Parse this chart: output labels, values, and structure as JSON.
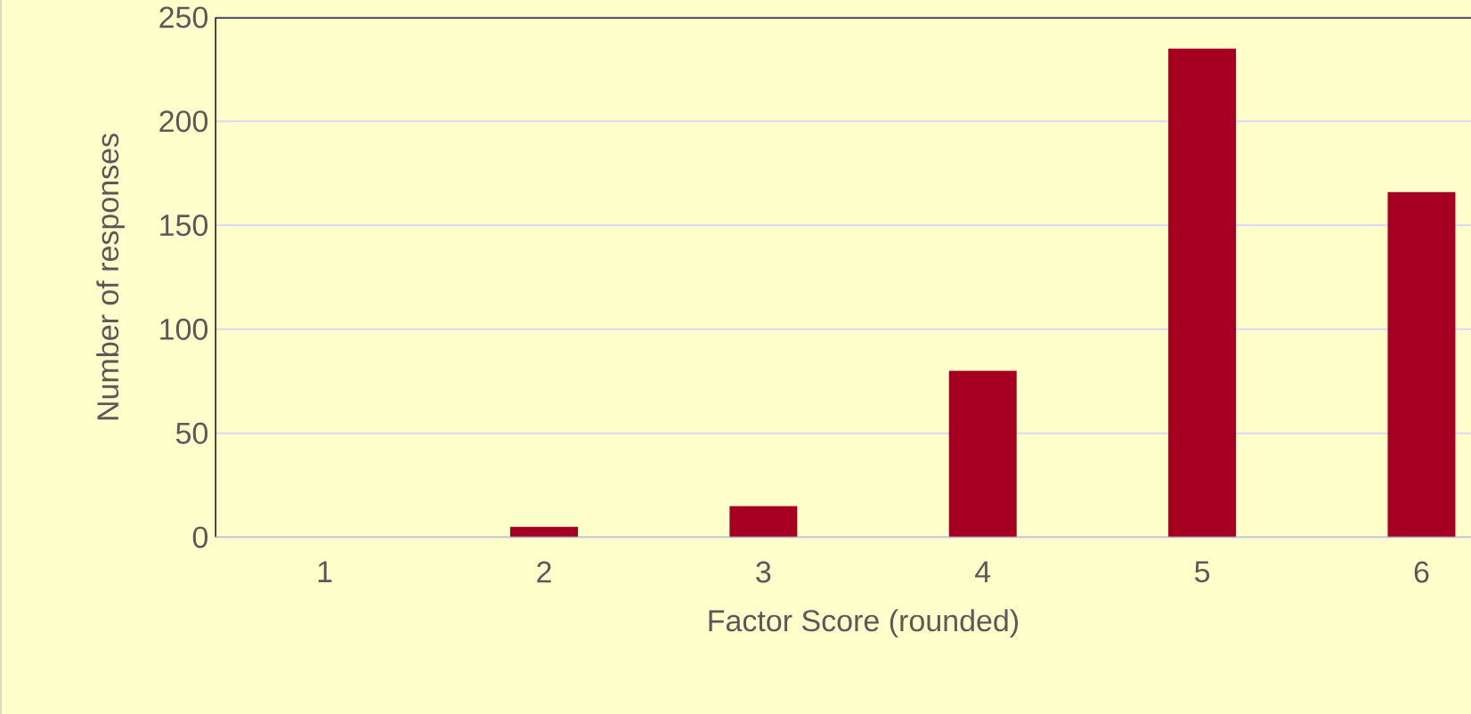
{
  "chart_data": {
    "type": "bar",
    "xlabel": "Factor Score (rounded)",
    "ylabel": "Number of responses",
    "categories": [
      "1",
      "2",
      "3",
      "4",
      "5",
      "6"
    ],
    "values": [
      0,
      5,
      15,
      80,
      235,
      166
    ],
    "color": "#a50021",
    "ylim": [
      0,
      250
    ],
    "yticks": [
      0,
      50,
      100,
      150,
      200,
      250
    ],
    "grid": "y"
  }
}
